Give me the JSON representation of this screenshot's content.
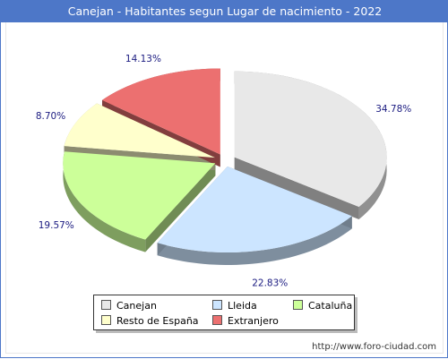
{
  "title": "Canejan - Habitantes segun Lugar de nacimiento - 2022",
  "footer": "http://www.foro-ciudad.com",
  "chart_data": {
    "type": "pie",
    "title": "Canejan - Habitantes segun Lugar de nacimiento - 2022",
    "legend_position": "bottom",
    "exploded": true,
    "three_d": true,
    "series": [
      {
        "name": "Canejan",
        "value": 34.78,
        "label": "34.78%",
        "color": "#e8e8e8"
      },
      {
        "name": "Lleida",
        "value": 22.83,
        "label": "22.83%",
        "color": "#cce5ff"
      },
      {
        "name": "Cataluña",
        "value": 19.57,
        "label": "19.57%",
        "color": "#ccff99"
      },
      {
        "name": "Resto de España",
        "value": 8.7,
        "label": "8.70%",
        "color": "#ffffcc"
      },
      {
        "name": "Extranjero",
        "value": 14.13,
        "label": "14.13%",
        "color": "#ec7070"
      }
    ]
  }
}
